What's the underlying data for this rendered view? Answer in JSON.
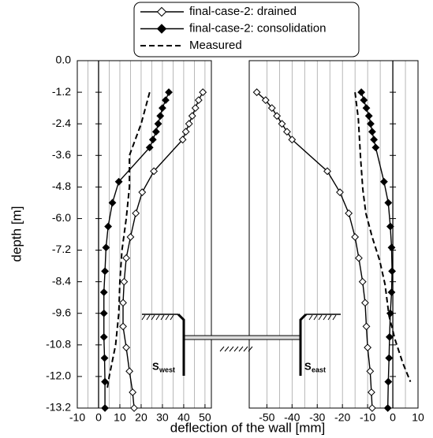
{
  "chart_data": {
    "type": "line",
    "y_label": "depth  [m]",
    "x_label": "deflection of the wall [mm]",
    "ylim": [
      -13.2,
      0
    ],
    "yticks": [
      {
        "value": 0,
        "label": "0.0"
      },
      -1.2,
      -2.4,
      -3.6,
      -4.8,
      {
        "value": -6,
        "label": "-6.0"
      },
      -7.2,
      -8.4,
      -9.6,
      -10.8,
      {
        "value": -12,
        "label": "-12.0"
      },
      -13.2
    ],
    "grid": true,
    "panels": [
      {
        "xlim": [
          -10,
          53
        ],
        "xticks": [
          -10,
          0,
          10,
          20,
          30,
          40,
          50
        ]
      },
      {
        "xlim": [
          -57,
          10
        ],
        "xticks": [
          -50,
          -40,
          -30,
          -20,
          -10,
          0,
          10
        ]
      }
    ],
    "series": [
      {
        "name": "final-case-2: drained",
        "color": "#000000",
        "marker": "open-diamond",
        "west": {
          "y": [
            -1.2,
            -1.5,
            -1.8,
            -2.1,
            -2.4,
            -2.7,
            -3.0,
            -4.2,
            -5.0,
            -5.8,
            -6.7,
            -7.5,
            -8.4,
            -9.2,
            -10.1,
            -10.9,
            -11.8,
            -12.6,
            -13.2
          ],
          "values": [
            49,
            47,
            45.5,
            44,
            42.5,
            41,
            39.5,
            26,
            20.5,
            17.5,
            15,
            13,
            12,
            11.5,
            11.5,
            13,
            14.5,
            16,
            16.7
          ]
        },
        "east": {
          "y": [
            -1.2,
            -1.5,
            -1.8,
            -2.1,
            -2.4,
            -2.7,
            -3.0,
            -4.2,
            -5.0,
            -5.8,
            -6.7,
            -7.5,
            -8.4,
            -9.2,
            -10.1,
            -10.9,
            -11.8,
            -12.6,
            -13.2
          ],
          "values": [
            -54,
            -50.5,
            -48,
            -46,
            -44,
            -42,
            -40,
            -26,
            -21,
            -17.5,
            -15,
            -13.5,
            -12,
            -11,
            -10.5,
            -10,
            -9,
            -8.5,
            -8.2
          ]
        }
      },
      {
        "name": "final-case-2: consolidation",
        "color": "#000000",
        "marker": "filled-diamond",
        "west": {
          "y": [
            -1.2,
            -1.5,
            -1.8,
            -2.1,
            -2.4,
            -2.7,
            -3.0,
            -3.3,
            -4.6,
            -5.4,
            -6.3,
            -7.1,
            -8.0,
            -8.8,
            -9.6,
            -10.5,
            -11.3,
            -12.2,
            -13.2
          ],
          "values": [
            33,
            31.5,
            30,
            29,
            28,
            27,
            25.5,
            24,
            9.5,
            6.5,
            4.5,
            3.5,
            3,
            2.5,
            2.5,
            2.5,
            2.8,
            3,
            3
          ]
        },
        "east": {
          "y": [
            -1.2,
            -1.5,
            -1.8,
            -2.1,
            -2.4,
            -2.7,
            -3.0,
            -3.3,
            -4.6,
            -5.4,
            -6.3,
            -7.1,
            -8.0,
            -8.8,
            -9.6,
            -10.5,
            -11.3,
            -12.2,
            -13.2
          ],
          "values": [
            -12.5,
            -11.5,
            -10.5,
            -9.5,
            -8.8,
            -8.2,
            -7.5,
            -6.8,
            -3.5,
            -1.8,
            -1,
            -0.5,
            -0.3,
            -0.5,
            -1,
            -1.3,
            -1.5,
            -1.8,
            -2
          ]
        }
      },
      {
        "name": "Measured",
        "color": "#000000",
        "marker": "none",
        "dashed": true,
        "west": {
          "y": [
            -1.2,
            -2.4,
            -3.6,
            -4.8,
            -6.0,
            -7.2,
            -8.4,
            -9.6,
            -10.8,
            -12.0,
            -12.5
          ],
          "values": [
            24,
            20,
            14.5,
            14.5,
            13,
            11,
            10,
            9.5,
            8,
            5,
            4
          ]
        },
        "east": {
          "y": [
            -1.2,
            -2.2,
            -3.7,
            -4.9,
            -5.8,
            -6.7,
            -7.6,
            -8.5,
            -9.7,
            -10.6,
            -11.5,
            -12.2
          ],
          "values": [
            -15,
            -13.7,
            -12.8,
            -11.9,
            -10.7,
            -8.2,
            -5.2,
            -3.1,
            -1.5,
            0.9,
            4,
            7
          ]
        }
      }
    ],
    "annotations": [
      {
        "symbol": "S",
        "subscript": "west"
      },
      {
        "symbol": "S",
        "subscript": "east"
      }
    ]
  }
}
